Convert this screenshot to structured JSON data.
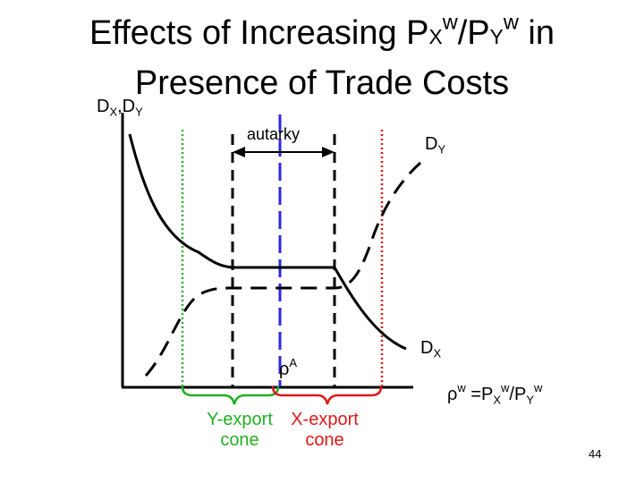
{
  "title": {
    "line1_prefix": "Effects of Increasing P",
    "sub_x": "X",
    "sup_w1": "w",
    "slash": "/P",
    "sub_y": "Y",
    "sup_w2": "w",
    "line1_suffix": " in",
    "line2": "Presence of Trade Costs"
  },
  "axis": {
    "y_label_d1": "D",
    "y_label_x": "X",
    "y_label_sep": ",D",
    "y_label_y": "Y",
    "x_label_rho": "ρ",
    "x_label_w": "w",
    "x_label_eq": " =P",
    "x_label_sx": "X",
    "x_label_w2": "w",
    "x_label_slash": "/P",
    "x_label_sy": "Y",
    "x_label_w3": "w"
  },
  "annotations": {
    "autarky": "autarky",
    "dy_d": "D",
    "dy_sub": "Y",
    "dx_d": "D",
    "dx_sub": "X",
    "rhoA_rho": "ρ",
    "rhoA_sup": "A",
    "y_export_1": "Y-export",
    "y_export_2": "cone",
    "x_export_1": "X-export",
    "x_export_2": "cone"
  },
  "page_number": "44",
  "colors": {
    "green": "#22b022",
    "red": "#e01818",
    "blue": "#2a2ae0",
    "black": "#000000"
  }
}
